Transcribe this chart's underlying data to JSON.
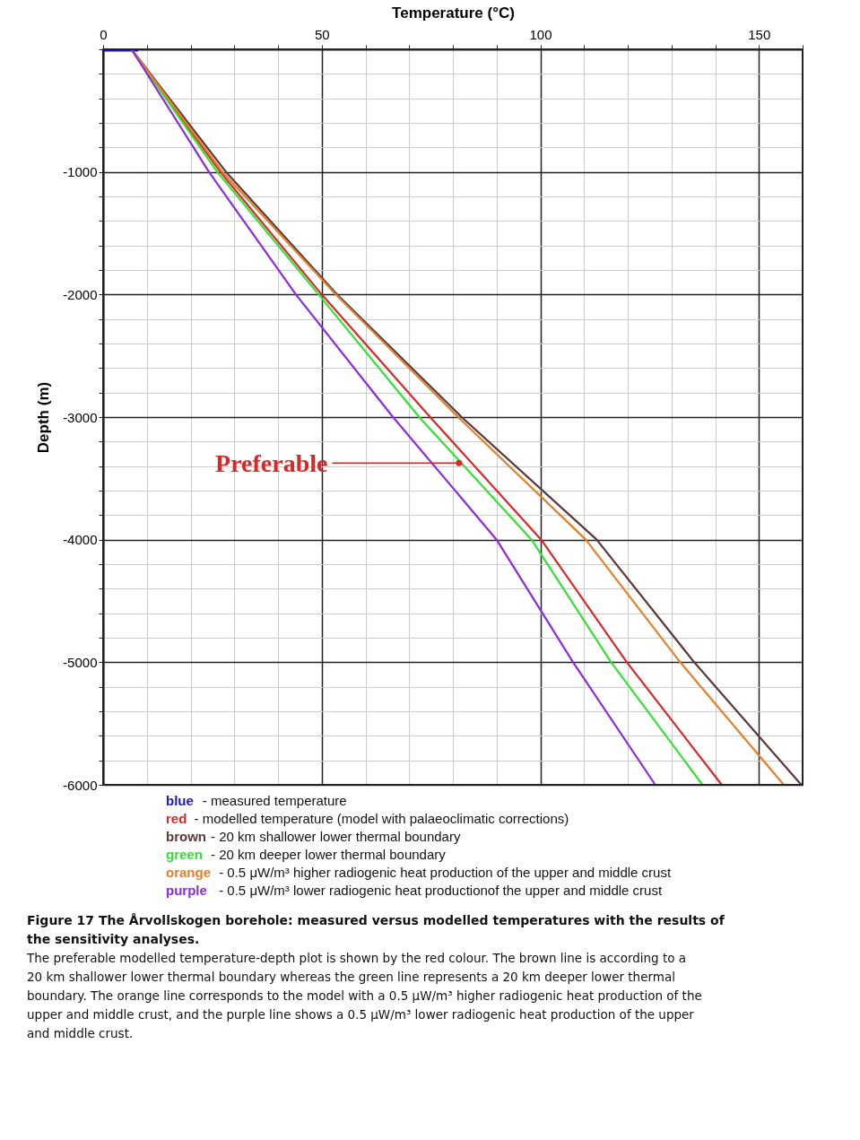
{
  "chart_data": {
    "type": "line",
    "xlabel": "Temperature (°C)",
    "ylabel": "Depth (m)",
    "xlim": [
      0,
      160
    ],
    "ylim": [
      -6000,
      0
    ],
    "xticks": [
      0,
      {
        "value": 10,
        "label": null
      },
      {
        "value": 20,
        "label": null
      },
      {
        "value": 30,
        "label": null
      },
      {
        "value": 40,
        "label": null
      },
      50,
      {
        "value": 60,
        "label": null
      },
      {
        "value": 70,
        "label": null
      },
      {
        "value": 80,
        "label": null
      },
      {
        "value": 90,
        "label": null
      },
      100,
      {
        "value": 110,
        "label": null
      },
      {
        "value": 120,
        "label": null
      },
      {
        "value": 130,
        "label": null
      },
      {
        "value": 140,
        "label": null
      },
      150,
      {
        "value": 160,
        "label": null
      }
    ],
    "yticks": [
      {
        "value": 0,
        "label": null
      },
      {
        "value": -200,
        "label": null
      },
      {
        "value": -400,
        "label": null
      },
      {
        "value": -600,
        "label": null
      },
      {
        "value": -800,
        "label": null
      },
      -1000,
      {
        "value": -1200,
        "label": null
      },
      {
        "value": -1400,
        "label": null
      },
      {
        "value": -1600,
        "label": null
      },
      {
        "value": -1800,
        "label": null
      },
      -2000,
      {
        "value": -2200,
        "label": null
      },
      {
        "value": -2400,
        "label": null
      },
      {
        "value": -2600,
        "label": null
      },
      {
        "value": -2800,
        "label": null
      },
      -3000,
      {
        "value": -3200,
        "label": null
      },
      {
        "value": -3400,
        "label": null
      },
      {
        "value": -3600,
        "label": null
      },
      {
        "value": -3800,
        "label": null
      },
      -4000,
      {
        "value": -4200,
        "label": null
      },
      {
        "value": -4400,
        "label": null
      },
      {
        "value": -4600,
        "label": null
      },
      {
        "value": -4800,
        "label": null
      },
      -5000,
      {
        "value": -5200,
        "label": null
      },
      {
        "value": -5400,
        "label": null
      },
      {
        "value": -5600,
        "label": null
      },
      {
        "value": -5800,
        "label": null
      },
      -6000
    ],
    "grid": true,
    "legend": "bottom",
    "marker": "none",
    "line_style": "solid",
    "series": [
      {
        "name": "blue - measured temperature",
        "color": "#1a1ab8",
        "x": [
          0,
          8
        ],
        "values": [
          -10,
          -10
        ]
      },
      {
        "name": "red - modelled temperature (model with palaeoclimatic corrections)",
        "color": "#d42a2a",
        "x": [
          6.5,
          26.8,
          50,
          74.8,
          100.2,
          119.8,
          141.5
        ],
        "values": [
          0,
          -1000,
          -2000,
          -3000,
          -4000,
          -5000,
          -6000
        ]
      },
      {
        "name": "brown - 20 km shallower lower thermal boundary",
        "color": "#5a3838",
        "x": [
          6.5,
          28.1,
          53.5,
          82,
          112.9,
          135.2,
          159.7
        ],
        "values": [
          0,
          -1000,
          -2000,
          -3000,
          -4000,
          -5000,
          -6000
        ]
      },
      {
        "name": "green - 20 km deeper lower thermal boundary",
        "color": "#33e033",
        "x": [
          6.5,
          26.1,
          49.3,
          72.3,
          98,
          116.2,
          137.1
        ],
        "values": [
          0,
          -1000,
          -2000,
          -3000,
          -4000,
          -5000,
          -6000
        ]
      },
      {
        "name": "orange -  0.5 μW/m³ higher radiogenic heat production of the upper and middle crust",
        "color": "#e57f2a",
        "x": [
          6.5,
          27.3,
          53.2,
          81.2,
          110.4,
          132,
          155.7
        ],
        "values": [
          0,
          -1000,
          -2000,
          -3000,
          -4000,
          -5000,
          -6000
        ]
      },
      {
        "name": "purple - 0.5 μW/m³ lower radiogenic heat productionof the upper and middle crust",
        "color": "#8a2be2",
        "x": [
          6.5,
          24.2,
          44.1,
          66.3,
          90,
          107.5,
          126.3
        ],
        "values": [
          0,
          -1000,
          -2000,
          -3000,
          -4000,
          -5000,
          -6000
        ]
      }
    ],
    "annotations": [
      {
        "text": "Preferable",
        "x": 81.4,
        "y": -3375
      },
      "Figure 17 The Årvollskogen borehole: measured versus modelled temperatures with the results of the sensitivity analyses.",
      "The preferable modelled temperature-depth plot is shown by the red colour. The brown line is according to a 20 km shallower lower thermal boundary whereas the green line represents a 20 km deeper lower thermal boundary. The orange line corresponds to the model with a 0.5 μW/m³ higher radiogenic heat production of the upper and middle crust, and the purple line shows a 0.5 μW/m³ lower radiogenic heat production of the upper and middle crust."
    ]
  }
}
